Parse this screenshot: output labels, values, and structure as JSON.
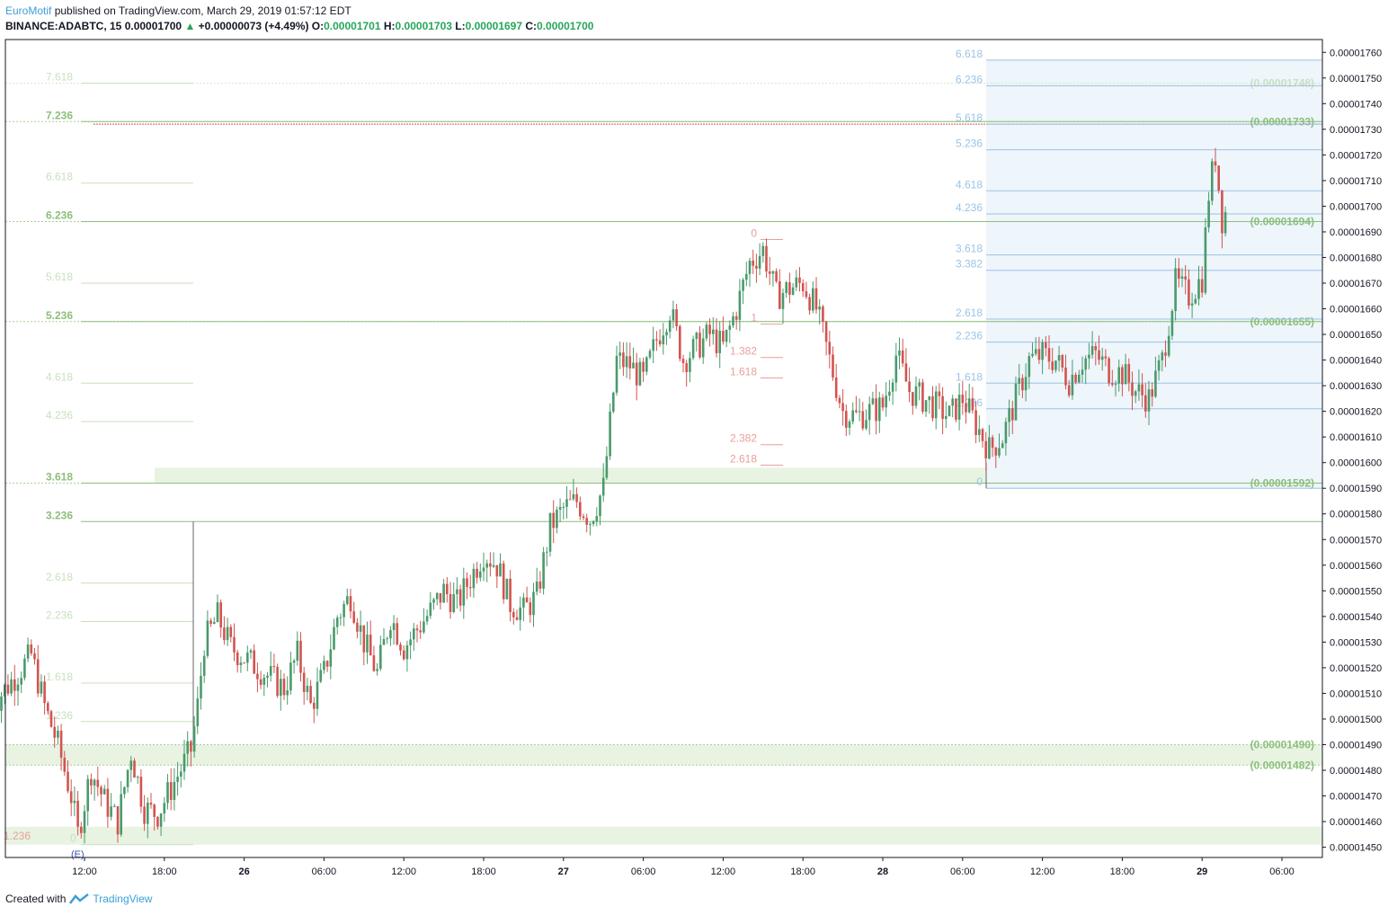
{
  "header": {
    "author": "EuroMotif",
    "published_text": "published on TradingView.com, March 29, 2019 01:57:12 EDT",
    "symbol": "BINANCE:ADABTC, 15",
    "last": "0.00001700",
    "change": "+0.00000073 (+4.49%)",
    "o_label": "O:",
    "o": "0.00001701",
    "h_label": "H:",
    "h": "0.00001703",
    "l_label": "L:",
    "l": "0.00001697",
    "c_label": "C:",
    "c": "0.00001700"
  },
  "footer": {
    "created_with": "Created with",
    "brand": "TradingView"
  },
  "colors": {
    "up": "#4a9a6c",
    "down": "#d2544f",
    "axis": "#131722",
    "green_fib": "#8bbf7a",
    "blue_fib": "#9ac4e6",
    "red_fib": "#e8a09c",
    "zone_green": "#e8f3e2",
    "zone_blue": "#eef5fb"
  },
  "chart_data": {
    "type": "candlestick",
    "title": "BINANCE:ADABTC, 15",
    "ylim": [
      1.446e-05,
      1.765e-05
    ],
    "price_ticks": [
      "0.00001760",
      "0.00001750",
      "0.00001740",
      "0.00001730",
      "0.00001720",
      "0.00001710",
      "0.00001700",
      "0.00001690",
      "0.00001680",
      "0.00001670",
      "0.00001660",
      "0.00001650",
      "0.00001640",
      "0.00001630",
      "0.00001620",
      "0.00001610",
      "0.00001600",
      "0.00001590",
      "0.00001580",
      "0.00001570",
      "0.00001560",
      "0.00001550",
      "0.00001540",
      "0.00001530",
      "0.00001520",
      "0.00001510",
      "0.00001500",
      "0.00001490",
      "0.00001480",
      "0.00001470",
      "0.00001460",
      "0.00001450"
    ],
    "time_ticks": [
      {
        "label": "12:00",
        "t": "Mar 25 12:00"
      },
      {
        "label": "18:00",
        "t": "Mar 25 18:00"
      },
      {
        "label": "26",
        "t": "Mar 26 00:00"
      },
      {
        "label": "06:00",
        "t": "Mar 26 06:00"
      },
      {
        "label": "12:00",
        "t": "Mar 26 12:00"
      },
      {
        "label": "18:00",
        "t": "Mar 26 18:00"
      },
      {
        "label": "27",
        "t": "Mar 27 00:00"
      },
      {
        "label": "06:00",
        "t": "Mar 27 06:00"
      },
      {
        "label": "12:00",
        "t": "Mar 27 12:00"
      },
      {
        "label": "18:00",
        "t": "Mar 27 18:00"
      },
      {
        "label": "28",
        "t": "Mar 28 00:00"
      },
      {
        "label": "06:00",
        "t": "Mar 28 06:00"
      },
      {
        "label": "12:00",
        "t": "Mar 28 12:00"
      },
      {
        "label": "18:00",
        "t": "Mar 28 18:00"
      },
      {
        "label": "29",
        "t": "Mar 29 00:00"
      },
      {
        "label": "06:00",
        "t": "Mar 29 06:00"
      }
    ],
    "key_levels": [
      {
        "label": "(0.00001748)",
        "price": 1.748e-05,
        "strong": false
      },
      {
        "label": "(0.00001733)",
        "price": 1.733e-05,
        "strong": true
      },
      {
        "label": "(0.00001694)",
        "price": 1.694e-05,
        "strong": true
      },
      {
        "label": "(0.00001655)",
        "price": 1.655e-05,
        "strong": true
      },
      {
        "label": "(0.00001592)",
        "price": 1.592e-05,
        "strong": true
      },
      {
        "label": "(0.00001490)",
        "price": 1.49e-05,
        "strong": true
      },
      {
        "label": "(0.00001482)",
        "price": 1.482e-05,
        "strong": true
      }
    ],
    "fib_left": [
      {
        "label": "7.618",
        "price": 1.748e-05,
        "strong": false
      },
      {
        "label": "7.236",
        "price": 1.733e-05,
        "strong": true
      },
      {
        "label": "6.618",
        "price": 1.709e-05,
        "strong": false
      },
      {
        "label": "6.236",
        "price": 1.694e-05,
        "strong": true
      },
      {
        "label": "5.618",
        "price": 1.67e-05,
        "strong": false
      },
      {
        "label": "5.236",
        "price": 1.655e-05,
        "strong": true
      },
      {
        "label": "4.618",
        "price": 1.631e-05,
        "strong": false
      },
      {
        "label": "4.236",
        "price": 1.616e-05,
        "strong": false
      },
      {
        "label": "3.618",
        "price": 1.592e-05,
        "strong": true
      },
      {
        "label": "3.236",
        "price": 1.577e-05,
        "strong": true
      },
      {
        "label": "2.618",
        "price": 1.553e-05,
        "strong": false
      },
      {
        "label": "2.236",
        "price": 1.538e-05,
        "strong": false
      },
      {
        "label": "1.618",
        "price": 1.514e-05,
        "strong": false
      },
      {
        "label": "1.236",
        "price": 1.499e-05,
        "strong": false
      },
      {
        "label": "0",
        "price": 1.451e-05,
        "strong": false
      }
    ],
    "fib_left_red_label": "1.236",
    "fib_left_marker": "(E)",
    "fib_mid": [
      {
        "label": "0",
        "price": 1.687e-05
      },
      {
        "label": "1",
        "price": 1.654e-05
      },
      {
        "label": "1.382",
        "price": 1.641e-05
      },
      {
        "label": "1.618",
        "price": 1.633e-05
      },
      {
        "label": "2.382",
        "price": 1.607e-05
      },
      {
        "label": "2.618",
        "price": 1.599e-05
      }
    ],
    "fib_right": [
      {
        "label": "6.618",
        "price": 1.757e-05
      },
      {
        "label": "6.236",
        "price": 1.747e-05
      },
      {
        "label": "5.618",
        "price": 1.732e-05
      },
      {
        "label": "5.236",
        "price": 1.722e-05
      },
      {
        "label": "4.618",
        "price": 1.706e-05
      },
      {
        "label": "4.236",
        "price": 1.697e-05
      },
      {
        "label": "3.618",
        "price": 1.681e-05
      },
      {
        "label": "3.382",
        "price": 1.675e-05
      },
      {
        "label": "2.618",
        "price": 1.656e-05
      },
      {
        "label": "2.236",
        "price": 1.647e-05
      },
      {
        "label": "1.618",
        "price": 1.631e-05
      },
      {
        "label": "1.236",
        "price": 1.621e-05
      },
      {
        "label": "0",
        "price": 1.59e-05
      }
    ],
    "price_path": [
      [
        "Mar 25 05:00",
        1.505e-05
      ],
      [
        "Mar 25 07:00",
        1.518e-05
      ],
      [
        "Mar 25 08:00",
        1.525e-05
      ],
      [
        "Mar 25 09:00",
        1.505e-05
      ],
      [
        "Mar 25 10:00",
        1.49e-05
      ],
      [
        "Mar 25 11:00",
        1.47e-05
      ],
      [
        "Mar 25 11:30",
        1.455e-05
      ],
      [
        "Mar 25 12:30",
        1.48e-05
      ],
      [
        "Mar 25 13:30",
        1.468e-05
      ],
      [
        "Mar 25 14:30",
        1.46e-05
      ],
      [
        "Mar 25 15:30",
        1.487e-05
      ],
      [
        "Mar 25 16:30",
        1.465e-05
      ],
      [
        "Mar 25 17:30",
        1.463e-05
      ],
      [
        "Mar 25 19:00",
        1.478e-05
      ],
      [
        "Mar 25 20:00",
        1.488e-05
      ],
      [
        "Mar 25 20:30",
        1.505e-05
      ],
      [
        "Mar 25 21:00",
        1.53e-05
      ],
      [
        "Mar 25 22:00",
        1.54e-05
      ],
      [
        "Mar 25 23:00",
        1.528e-05
      ],
      [
        "Mar 26 01:00",
        1.52e-05
      ],
      [
        "Mar 26 03:00",
        1.512e-05
      ],
      [
        "Mar 26 04:00",
        1.525e-05
      ],
      [
        "Mar 26 05:00",
        1.505e-05
      ],
      [
        "Mar 26 06:00",
        1.518e-05
      ],
      [
        "Mar 26 07:00",
        1.54e-05
      ],
      [
        "Mar 26 08:00",
        1.548e-05
      ],
      [
        "Mar 26 09:00",
        1.53e-05
      ],
      [
        "Mar 26 10:00",
        1.518e-05
      ],
      [
        "Mar 26 11:00",
        1.54e-05
      ],
      [
        "Mar 26 12:00",
        1.528e-05
      ],
      [
        "Mar 26 13:00",
        1.535e-05
      ],
      [
        "Mar 26 14:00",
        1.542e-05
      ],
      [
        "Mar 26 15:00",
        1.55e-05
      ],
      [
        "Mar 26 16:00",
        1.545e-05
      ],
      [
        "Mar 26 17:00",
        1.555e-05
      ],
      [
        "Mar 26 18:00",
        1.565e-05
      ],
      [
        "Mar 26 19:00",
        1.56e-05
      ],
      [
        "Mar 26 20:00",
        1.545e-05
      ],
      [
        "Mar 26 21:00",
        1.542e-05
      ],
      [
        "Mar 26 22:00",
        1.548e-05
      ],
      [
        "Mar 26 23:00",
        1.575e-05
      ],
      [
        "Mar 27 00:00",
        1.582e-05
      ],
      [
        "Mar 27 01:00",
        1.585e-05
      ],
      [
        "Mar 27 02:00",
        1.578e-05
      ],
      [
        "Mar 27 03:00",
        1.59e-05
      ],
      [
        "Mar 27 04:00",
        1.64e-05
      ],
      [
        "Mar 27 05:00",
        1.638e-05
      ],
      [
        "Mar 27 06:00",
        1.632e-05
      ],
      [
        "Mar 27 07:00",
        1.648e-05
      ],
      [
        "Mar 27 08:00",
        1.66e-05
      ],
      [
        "Mar 27 09:00",
        1.64e-05
      ],
      [
        "Mar 27 10:00",
        1.645e-05
      ],
      [
        "Mar 27 11:00",
        1.65e-05
      ],
      [
        "Mar 27 12:00",
        1.645e-05
      ],
      [
        "Mar 27 13:00",
        1.66e-05
      ],
      [
        "Mar 27 14:00",
        1.678e-05
      ],
      [
        "Mar 27 15:00",
        1.683e-05
      ],
      [
        "Mar 27 16:00",
        1.665e-05
      ],
      [
        "Mar 27 17:00",
        1.668e-05
      ],
      [
        "Mar 27 18:00",
        1.67e-05
      ],
      [
        "Mar 27 19:00",
        1.66e-05
      ],
      [
        "Mar 27 20:00",
        1.64e-05
      ],
      [
        "Mar 27 21:00",
        1.62e-05
      ],
      [
        "Mar 27 22:00",
        1.618e-05
      ],
      [
        "Mar 28 00:00",
        1.622e-05
      ],
      [
        "Mar 28 01:00",
        1.642e-05
      ],
      [
        "Mar 28 02:00",
        1.628e-05
      ],
      [
        "Mar 28 03:00",
        1.625e-05
      ],
      [
        "Mar 28 04:00",
        1.622e-05
      ],
      [
        "Mar 28 05:00",
        1.618e-05
      ],
      [
        "Mar 28 06:00",
        1.625e-05
      ],
      [
        "Mar 28 07:00",
        1.615e-05
      ],
      [
        "Mar 28 08:00",
        1.605e-05
      ],
      [
        "Mar 28 09:00",
        1.61e-05
      ],
      [
        "Mar 28 10:00",
        1.625e-05
      ],
      [
        "Mar 28 11:00",
        1.64e-05
      ],
      [
        "Mar 28 12:00",
        1.642e-05
      ],
      [
        "Mar 28 13:00",
        1.64e-05
      ],
      [
        "Mar 28 14:00",
        1.632e-05
      ],
      [
        "Mar 28 15:00",
        1.64e-05
      ],
      [
        "Mar 28 16:00",
        1.642e-05
      ],
      [
        "Mar 28 17:00",
        1.636e-05
      ],
      [
        "Mar 28 18:00",
        1.635e-05
      ],
      [
        "Mar 28 19:00",
        1.628e-05
      ],
      [
        "Mar 28 20:00",
        1.625e-05
      ],
      [
        "Mar 28 21:00",
        1.64e-05
      ],
      [
        "Mar 28 22:00",
        1.67e-05
      ],
      [
        "Mar 28 23:00",
        1.665e-05
      ],
      [
        "Mar 29 00:00",
        1.672e-05
      ],
      [
        "Mar 29 00:30",
        1.705e-05
      ],
      [
        "Mar 29 01:00",
        1.72e-05
      ],
      [
        "Mar 29 01:30",
        1.695e-05
      ],
      [
        "Mar 29 02:00",
        1.7e-05
      ]
    ]
  }
}
